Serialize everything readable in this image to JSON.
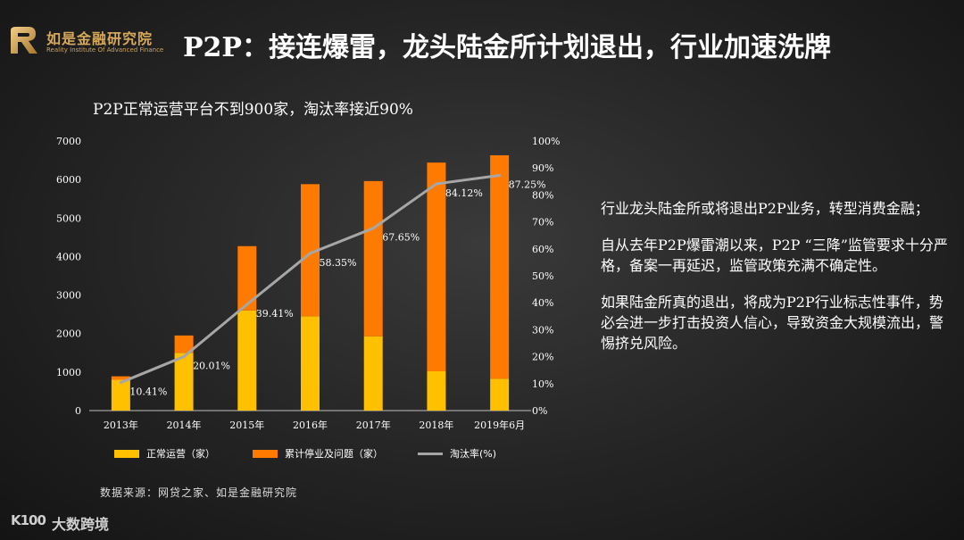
{
  "brand": {
    "name": "如是金融研究院",
    "subtitle": "Reality Institute Of Advanced Finance",
    "primary_color": "#d6a85a"
  },
  "title": "P2P：接连爆雷，龙头陆金所计划退出，行业加速洗牌",
  "chart_data": {
    "type": "bar",
    "title": "P2P正常运营平台不到900家，淘汰率接近90%",
    "categories": [
      "2013年",
      "2014年",
      "2015年",
      "2016年",
      "2017年",
      "2018年",
      "2019年6月"
    ],
    "series": [
      {
        "name": "正常运营（家）",
        "type": "stacked-bar",
        "axis": "left",
        "color": "#ffc000",
        "values": [
          800,
          1500,
          2600,
          2450,
          1930,
          1020,
          830
        ]
      },
      {
        "name": "累计停业及问题（家）",
        "type": "stacked-bar",
        "axis": "left",
        "color": "#ff7a00",
        "values": [
          90,
          450,
          1670,
          3430,
          4030,
          5420,
          5800
        ]
      },
      {
        "name": "淘汰率(%)",
        "type": "line",
        "axis": "right",
        "color": "#a6a6a6",
        "values": [
          10.41,
          20.01,
          39.41,
          58.35,
          67.65,
          84.12,
          87.25
        ],
        "labels": [
          "10.41%",
          "20.01%",
          "39.41%",
          "58.35%",
          "67.65%",
          "84.12%",
          "87.25%"
        ]
      }
    ],
    "y_left": {
      "min": 0,
      "max": 7000,
      "ticks": [
        "0",
        "1000",
        "2000",
        "3000",
        "4000",
        "5000",
        "6000",
        "7000"
      ]
    },
    "y_right": {
      "min": 0,
      "max": 100,
      "ticks": [
        "0%",
        "10%",
        "20%",
        "30%",
        "40%",
        "50%",
        "60%",
        "70%",
        "80%",
        "90%",
        "100%"
      ]
    },
    "grid": false,
    "legend_position": "bottom"
  },
  "source": "数据来源：网贷之家、如是金融研究院",
  "notes": [
    "行业龙头陆金所或将退出P2P业务，转型消费金融；",
    "自从去年P2P爆雷潮以来，P2P “三降”监管要求十分严格，备案一再延迟，监管政策充满不确定性。",
    "如果陆金所真的退出，将成为P2P行业标志性事件，势必会进一步打击投资人信心，导致资金大规模流出，警惕挤兑风险。"
  ],
  "watermark": {
    "mark": "K100",
    "text": "大数跨境"
  }
}
